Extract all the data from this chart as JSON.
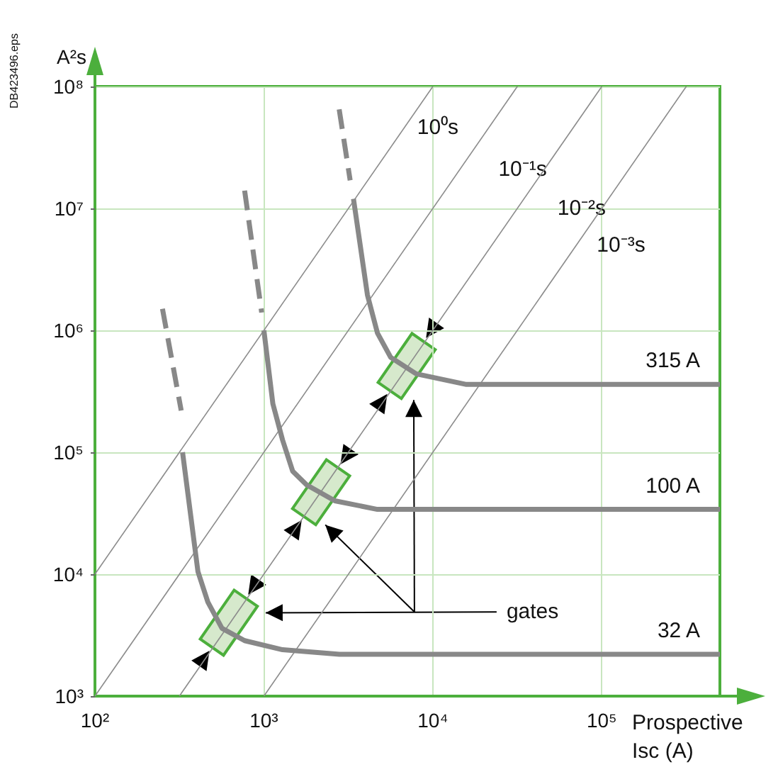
{
  "chart_data": {
    "type": "line",
    "xlabel": "Prospective Isc (A)",
    "ylabel": "A²s",
    "log": "xy",
    "grid": true,
    "marker": "none",
    "xlim": [
      100,
      500000
    ],
    "ylim": [
      1000,
      100000000
    ],
    "xticks": [
      {
        "value": 100,
        "label": "10²"
      },
      {
        "value": 1000,
        "label": "10³"
      },
      {
        "value": 10000,
        "label": "10⁴"
      },
      {
        "value": 100000,
        "label": "10⁵"
      }
    ],
    "yticks": [
      {
        "value": 1000,
        "label": "10³"
      },
      {
        "value": 10000,
        "label": "10⁴"
      },
      {
        "value": 100000,
        "label": "10⁵"
      },
      {
        "value": 1000000,
        "label": "10⁶"
      },
      {
        "value": 10000000,
        "label": "10⁷"
      },
      {
        "value": 100000000,
        "label": "10⁸"
      }
    ],
    "series": [
      {
        "color": "#8c8c8c",
        "x": [
          100,
          10000
        ],
        "values": [
          10000,
          100000000
        ]
      },
      {
        "color": "#8c8c8c",
        "x": [
          100,
          31623
        ],
        "values": [
          1000,
          100000000
        ]
      },
      {
        "color": "#8c8c8c",
        "x": [
          316,
          100000
        ],
        "values": [
          1000,
          100000000
        ]
      },
      {
        "color": "#8c8c8c",
        "x": [
          1000,
          316228
        ],
        "values": [
          1000,
          100000000
        ]
      },
      {
        "color": "#888888",
        "line_style": "dashed",
        "x": [
          251,
          324
        ],
        "values": [
          1500000,
          220000
        ]
      },
      {
        "name": "32 A",
        "color": "#888888",
        "x": [
          330,
          407,
          466,
          565,
          769,
          1290,
          2800,
          500000
        ],
        "values": [
          100000,
          10500,
          5900,
          3600,
          2850,
          2400,
          2200,
          2200
        ]
      },
      {
        "color": "#888888",
        "line_style": "dashed",
        "x": [
          769,
          970
        ],
        "values": [
          14000000,
          1400000
        ]
      },
      {
        "name": "100 A",
        "color": "#888888",
        "x": [
          1000,
          1130,
          1290,
          1480,
          1790,
          2630,
          4700,
          500000
        ],
        "values": [
          1000000,
          250000,
          126000,
          70000,
          54000,
          40000,
          34000,
          34000
        ]
      },
      {
        "color": "#888888",
        "line_style": "dashed",
        "x": [
          2790,
          3240
        ],
        "values": [
          65000000,
          17000000
        ]
      },
      {
        "name": "315 A",
        "color": "#888888",
        "x": [
          3390,
          4100,
          4700,
          5630,
          7970,
          15800,
          500000
        ],
        "values": [
          12000000,
          1950000,
          950000,
          600000,
          440000,
          360000,
          360000
        ]
      }
    ],
    "annotations": [
      "10⁰s",
      "10⁻¹s",
      "10⁻²s",
      "10⁻³s",
      "gates",
      "DB423496.eps"
    ]
  }
}
